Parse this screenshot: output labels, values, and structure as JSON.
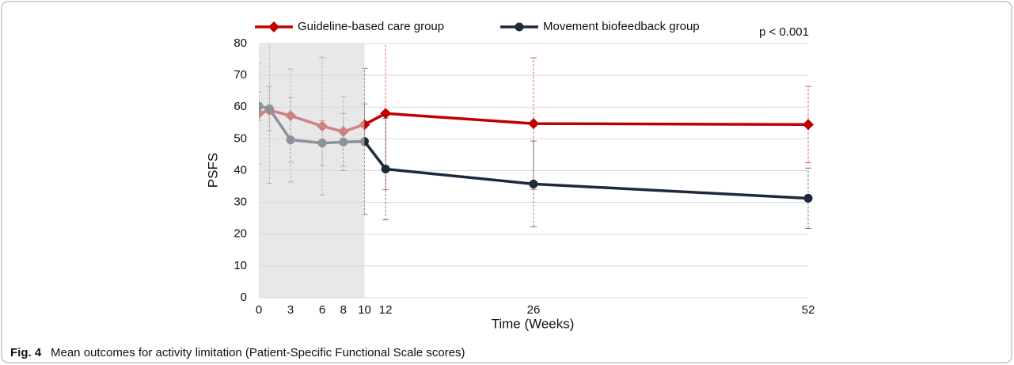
{
  "chart_data": {
    "type": "line",
    "caption_label": "Fig. 4",
    "caption": "Mean outcomes for activity limitation (Patient-Specific Functional Scale scores)",
    "annotation": "p < 0.001",
    "xlabel": "Time (Weeks)",
    "ylabel": "PSFS",
    "x": [
      0,
      1,
      3,
      6,
      8,
      10,
      12,
      26,
      52
    ],
    "xlim": [
      0,
      52
    ],
    "xticks": [
      0,
      3,
      6,
      8,
      10,
      12,
      26,
      52
    ],
    "ylim": [
      0,
      80
    ],
    "yticks": [
      0,
      10,
      20,
      30,
      40,
      50,
      60,
      70,
      80
    ],
    "grid": true,
    "shaded_region": [
      0,
      10
    ],
    "series": [
      {
        "name": "Guideline-based care group",
        "color": "#c00000",
        "marker": "diamond",
        "values": [
          58,
          59,
          57.3,
          54,
          52.3,
          54.5,
          58,
          54.8,
          54.5
        ],
        "errors": [
          16,
          23,
          14.7,
          21.7,
          11,
          6.5,
          24,
          20.7,
          12
        ]
      },
      {
        "name": "Movement biofeedback group",
        "color": "#1c2a3c",
        "marker": "circle",
        "values": [
          60.3,
          59.5,
          49.7,
          48.7,
          49,
          49.2,
          40.5,
          35.8,
          31.3
        ],
        "errors": [
          4.5,
          7,
          13.3,
          7,
          9,
          23,
          16,
          13.5,
          9.5
        ]
      }
    ]
  }
}
